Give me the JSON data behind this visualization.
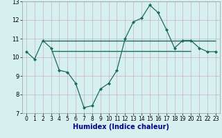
{
  "title": "",
  "xlabel": "Humidex (Indice chaleur)",
  "ylabel": "",
  "x": [
    0,
    1,
    2,
    3,
    4,
    5,
    6,
    7,
    8,
    9,
    10,
    11,
    12,
    13,
    14,
    15,
    16,
    17,
    18,
    19,
    20,
    21,
    22,
    23
  ],
  "y_curve": [
    10.3,
    9.9,
    10.9,
    10.5,
    9.3,
    9.2,
    8.6,
    7.3,
    7.4,
    8.3,
    8.6,
    9.3,
    11.0,
    11.9,
    12.1,
    12.8,
    12.4,
    11.5,
    10.5,
    10.9,
    10.9,
    10.5,
    10.3,
    10.3
  ],
  "hline1_y": 10.9,
  "hline1_x_start": 2,
  "hline1_x_end": 23,
  "hline2_y": 10.35,
  "hline2_x_start": 3,
  "hline2_x_end": 20,
  "line_color": "#1a6b5a",
  "bg_color": "#d6f0f0",
  "grid_color": "#c8b0c8",
  "ylim": [
    7,
    13
  ],
  "xlim": [
    -0.5,
    23.5
  ],
  "yticks": [
    7,
    8,
    9,
    10,
    11,
    12,
    13
  ],
  "xlabel_color": "#00008b",
  "xlabel_fontsize": 7.0,
  "tick_fontsize": 5.5
}
